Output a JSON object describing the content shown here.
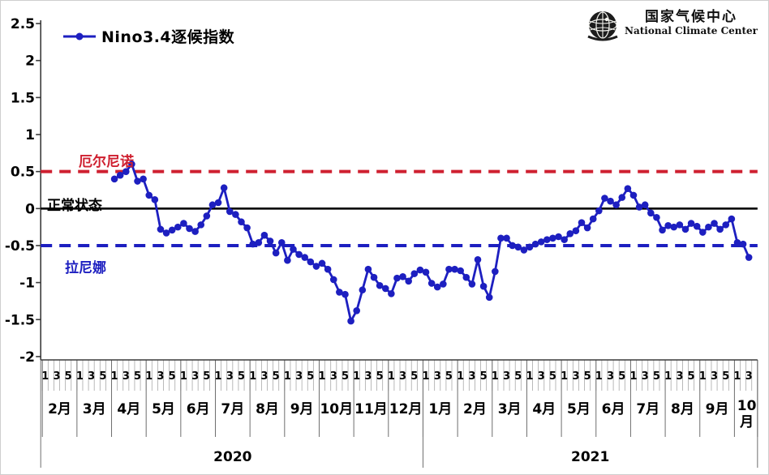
{
  "legend": {
    "label": "Nino3.4逐候指数"
  },
  "logo": {
    "title_cn": "国家气候中心",
    "title_en": "National Climate Center",
    "icon": "globe-emblem-icon"
  },
  "annotations": {
    "el_nino": "厄尔尼诺",
    "normal": "正常状态",
    "la_nina": "拉尼娜"
  },
  "colors": {
    "series_blue": "#1d1fc0",
    "el_nino_red": "#cf2030",
    "la_nina_blue": "#1d1fc0",
    "zero_black": "#000000",
    "grid_gray": "#9a9a9a",
    "axis_black": "#4a4a4a"
  },
  "y_axis": {
    "tick_labels": [
      "2.5",
      "2",
      "1.5",
      "1",
      "0.5",
      "0",
      "-0.5",
      "-1",
      "-1.5",
      "-2"
    ],
    "tick_values": [
      2.5,
      2,
      1.5,
      1,
      0.5,
      0,
      -0.5,
      -1,
      -1.5,
      -2
    ],
    "min": -2,
    "max": 2.5
  },
  "x_axis": {
    "pentad_label_set": [
      "1",
      "3",
      "5"
    ],
    "months": [
      {
        "label": "2月",
        "pentads": 6,
        "pentad_labels": [
          "1",
          "3",
          "5"
        ]
      },
      {
        "label": "3月",
        "pentads": 6,
        "pentad_labels": [
          "1",
          "3",
          "5"
        ]
      },
      {
        "label": "4月",
        "pentads": 6,
        "pentad_labels": [
          "1",
          "3",
          "5"
        ]
      },
      {
        "label": "5月",
        "pentads": 6,
        "pentad_labels": [
          "1",
          "3",
          "5"
        ]
      },
      {
        "label": "6月",
        "pentads": 6,
        "pentad_labels": [
          "1",
          "3",
          "5"
        ]
      },
      {
        "label": "7月",
        "pentads": 6,
        "pentad_labels": [
          "1",
          "3",
          "5"
        ]
      },
      {
        "label": "8月",
        "pentads": 6,
        "pentad_labels": [
          "1",
          "3",
          "5"
        ]
      },
      {
        "label": "9月",
        "pentads": 6,
        "pentad_labels": [
          "1",
          "3",
          "5"
        ]
      },
      {
        "label": "10月",
        "pentads": 6,
        "pentad_labels": [
          "1",
          "3",
          "5"
        ]
      },
      {
        "label": "11月",
        "pentads": 6,
        "pentad_labels": [
          "1",
          "3",
          "5"
        ]
      },
      {
        "label": "12月",
        "pentads": 6,
        "pentad_labels": [
          "1",
          "3",
          "5"
        ]
      },
      {
        "label": "1月",
        "pentads": 6,
        "pentad_labels": [
          "1",
          "3",
          "5"
        ]
      },
      {
        "label": "2月",
        "pentads": 6,
        "pentad_labels": [
          "1",
          "3",
          "5"
        ]
      },
      {
        "label": "3月",
        "pentads": 6,
        "pentad_labels": [
          "1",
          "3",
          "5"
        ]
      },
      {
        "label": "4月",
        "pentads": 6,
        "pentad_labels": [
          "1",
          "3",
          "5"
        ]
      },
      {
        "label": "5月",
        "pentads": 6,
        "pentad_labels": [
          "1",
          "3",
          "5"
        ]
      },
      {
        "label": "6月",
        "pentads": 6,
        "pentad_labels": [
          "1",
          "3",
          "5"
        ]
      },
      {
        "label": "7月",
        "pentads": 6,
        "pentad_labels": [
          "1",
          "3",
          "5"
        ]
      },
      {
        "label": "8月",
        "pentads": 6,
        "pentad_labels": [
          "1",
          "3",
          "5"
        ]
      },
      {
        "label": "9月",
        "pentads": 6,
        "pentad_labels": [
          "1",
          "3",
          "5"
        ]
      },
      {
        "label": "10月",
        "pentads": 4,
        "pentad_labels": [
          "1",
          "3"
        ]
      }
    ],
    "years": [
      {
        "label": "2020",
        "months": 11
      },
      {
        "label": "2021",
        "months": 10
      }
    ]
  },
  "chart_data": {
    "type": "line",
    "title": "Nino3.4逐候指数",
    "x_unit": "pentad (候), 6 per month",
    "x_start": "2020年4月 候1",
    "x_end": "2021年10月 候3",
    "reference_lines": [
      {
        "label": "厄尔尼诺",
        "value": 0.5,
        "style": "dashed",
        "color": "#cf2030"
      },
      {
        "label": "正常状态",
        "value": 0.0,
        "style": "solid",
        "color": "#000000"
      },
      {
        "label": "拉尼娜",
        "value": -0.5,
        "style": "dashed",
        "color": "#1d1fc0"
      }
    ],
    "ylim": [
      -2,
      2.5
    ],
    "start_slot": 12,
    "total_slots": 124,
    "series": [
      {
        "name": "Nino3.4逐候指数",
        "color": "#1d1fc0",
        "values": [
          0.4,
          0.45,
          0.5,
          0.6,
          0.37,
          0.4,
          0.18,
          0.12,
          -0.28,
          -0.33,
          -0.29,
          -0.25,
          -0.2,
          -0.27,
          -0.31,
          -0.22,
          -0.1,
          0.05,
          0.08,
          0.28,
          -0.04,
          -0.08,
          -0.18,
          -0.26,
          -0.48,
          -0.46,
          -0.36,
          -0.44,
          -0.6,
          -0.46,
          -0.7,
          -0.55,
          -0.62,
          -0.66,
          -0.72,
          -0.78,
          -0.74,
          -0.82,
          -0.96,
          -1.13,
          -1.16,
          -1.52,
          -1.38,
          -1.1,
          -0.82,
          -0.93,
          -1.04,
          -1.08,
          -1.15,
          -0.94,
          -0.92,
          -0.98,
          -0.88,
          -0.83,
          -0.86,
          -1.01,
          -1.06,
          -1.02,
          -0.82,
          -0.82,
          -0.84,
          -0.93,
          -1.02,
          -0.69,
          -1.05,
          -1.2,
          -0.85,
          -0.4,
          -0.4,
          -0.5,
          -0.52,
          -0.56,
          -0.52,
          -0.48,
          -0.45,
          -0.42,
          -0.4,
          -0.38,
          -0.42,
          -0.34,
          -0.3,
          -0.19,
          -0.26,
          -0.14,
          -0.03,
          0.14,
          0.1,
          0.05,
          0.15,
          0.27,
          0.18,
          0.02,
          0.05,
          -0.06,
          -0.12,
          -0.29,
          -0.23,
          -0.25,
          -0.22,
          -0.28,
          -0.2,
          -0.24,
          -0.32,
          -0.25,
          -0.2,
          -0.28,
          -0.22,
          -0.14,
          -0.46,
          -0.48,
          -0.66
        ]
      }
    ]
  }
}
